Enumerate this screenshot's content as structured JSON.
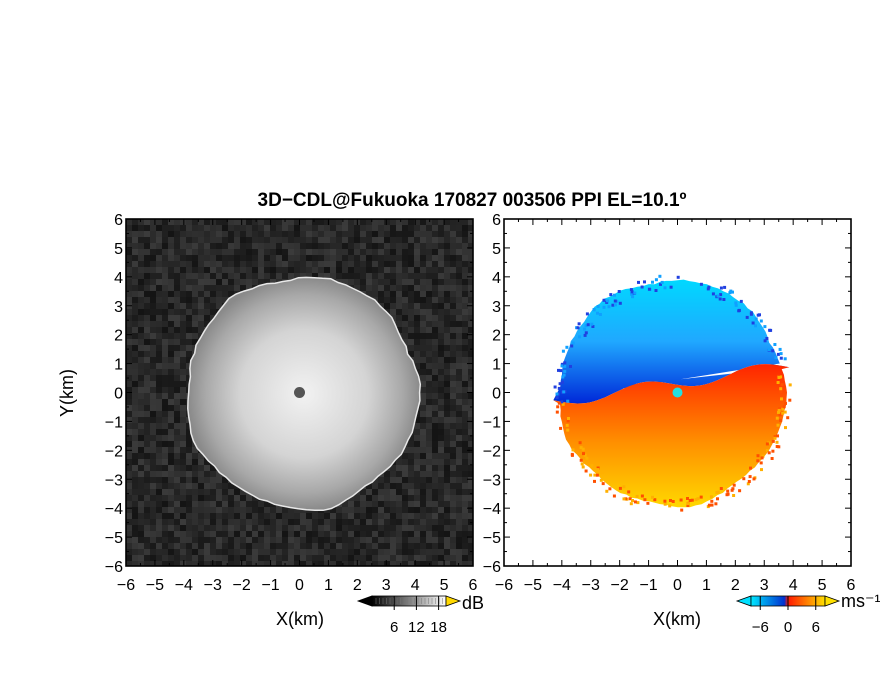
{
  "chart_data": [
    {
      "type": "heatmap",
      "title": "3D−CDL@Fukuoka 170827 003506 PPI EL=10.1º",
      "panel": "left",
      "quantity": "signal-to-noise ratio",
      "xlabel": "X(km)",
      "ylabel": "Y(km)",
      "xlim": [
        -6,
        6
      ],
      "ylim": [
        -6,
        6
      ],
      "xticks": [
        "−6",
        "−5",
        "−4",
        "−3",
        "−2",
        "−1",
        "0",
        "1",
        "2",
        "3",
        "4",
        "5",
        "6"
      ],
      "yticks": [
        "6",
        "5",
        "4",
        "3",
        "2",
        "1",
        "0",
        "−1",
        "−2",
        "−3",
        "−4",
        "−5",
        "−6"
      ],
      "colormap": "grayscale",
      "echo_radius_km": 4.0,
      "echo_center_km": [
        0.1,
        0.0
      ],
      "colorbar": {
        "unit": "dB",
        "ticks": [
          "6",
          "12",
          "18"
        ],
        "range": [
          0,
          20
        ]
      }
    },
    {
      "type": "heatmap",
      "panel": "right",
      "quantity": "doppler velocity",
      "xlabel": "X(km)",
      "ylabel": "",
      "xlim": [
        -6,
        6
      ],
      "ylim": [
        -6,
        6
      ],
      "xticks": [
        "−6",
        "−5",
        "−4",
        "−3",
        "−2",
        "−1",
        "0",
        "1",
        "2",
        "3",
        "4",
        "5",
        "6"
      ],
      "yticks": [
        "6",
        "5",
        "4",
        "3",
        "2",
        "1",
        "0",
        "−1",
        "−2",
        "−3",
        "−4",
        "−5",
        "−6"
      ],
      "colormap": "cyan-blue to red-yellow",
      "echo_radius_km": 3.9,
      "echo_center_km": [
        -0.2,
        0.0
      ],
      "colorbar": {
        "unit": "ms⁻¹",
        "ticks": [
          "−6",
          "0",
          "6"
        ],
        "range": [
          -8,
          8
        ]
      }
    }
  ],
  "colors": {
    "frame": "#000000",
    "snr_background": "#1e1e1e",
    "snr_high": "#f0f0f0",
    "vel_negative": "#00c8ff",
    "vel_negative_dark": "#0030d0",
    "vel_positive": "#ff2000",
    "vel_positive_high": "#ffe000",
    "radar_marker_left": "#555555",
    "radar_marker_right": "#22e0e0"
  }
}
